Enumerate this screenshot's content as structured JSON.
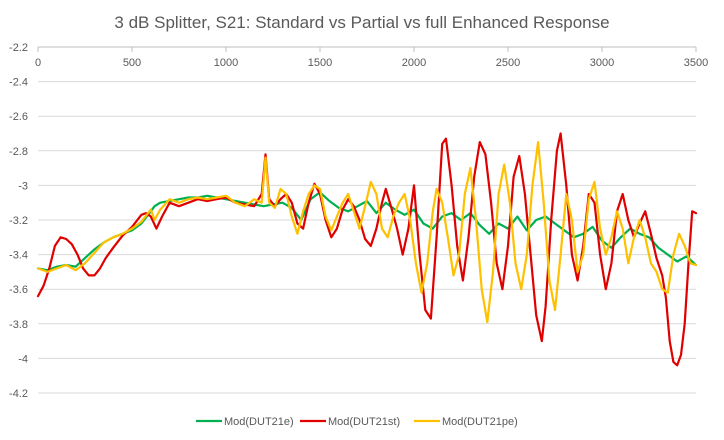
{
  "chart_data": {
    "type": "line",
    "title": "3 dB Splitter, S21: Standard vs Partial vs full Enhanced Response",
    "xlabel": "",
    "ylabel": "",
    "xlim": [
      0,
      3500
    ],
    "ylim": [
      -4.2,
      -2.2
    ],
    "x_ticks": [
      0,
      500,
      1000,
      1500,
      2000,
      2500,
      3000,
      3500
    ],
    "y_ticks": [
      -2.2,
      -2.4,
      -2.6,
      -2.8,
      -3,
      -3.2,
      -3.4,
      -3.6,
      -3.8,
      -4,
      -4.2
    ],
    "x_tick_labels": [
      "0",
      "500",
      "1000",
      "1500",
      "2000",
      "2500",
      "3000",
      "3500"
    ],
    "y_tick_labels": [
      "-2.2",
      "-2.4",
      "-2.6",
      "-2.8",
      "-3",
      "-3.2",
      "-3.4",
      "-3.6",
      "-3.8",
      "-4",
      "-4.2"
    ],
    "grid": "horizontal",
    "legend_position": "bottom",
    "series": [
      {
        "name": "Mod(DUT21e)",
        "color": "#00B050",
        "points": [
          [
            0,
            -3.48
          ],
          [
            50,
            -3.49
          ],
          [
            100,
            -3.47
          ],
          [
            150,
            -3.46
          ],
          [
            200,
            -3.47
          ],
          [
            250,
            -3.42
          ],
          [
            300,
            -3.37
          ],
          [
            350,
            -3.33
          ],
          [
            400,
            -3.3
          ],
          [
            450,
            -3.28
          ],
          [
            500,
            -3.26
          ],
          [
            550,
            -3.22
          ],
          [
            600,
            -3.15
          ],
          [
            620,
            -3.12
          ],
          [
            650,
            -3.1
          ],
          [
            700,
            -3.09
          ],
          [
            750,
            -3.08
          ],
          [
            800,
            -3.07
          ],
          [
            850,
            -3.07
          ],
          [
            900,
            -3.06
          ],
          [
            950,
            -3.07
          ],
          [
            1000,
            -3.08
          ],
          [
            1050,
            -3.09
          ],
          [
            1100,
            -3.1
          ],
          [
            1150,
            -3.11
          ],
          [
            1200,
            -3.12
          ],
          [
            1250,
            -3.11
          ],
          [
            1300,
            -3.1
          ],
          [
            1350,
            -3.13
          ],
          [
            1400,
            -3.2
          ],
          [
            1450,
            -3.08
          ],
          [
            1500,
            -3.04
          ],
          [
            1550,
            -3.09
          ],
          [
            1600,
            -3.13
          ],
          [
            1650,
            -3.15
          ],
          [
            1700,
            -3.12
          ],
          [
            1750,
            -3.09
          ],
          [
            1800,
            -3.16
          ],
          [
            1850,
            -3.1
          ],
          [
            1900,
            -3.14
          ],
          [
            1950,
            -3.17
          ],
          [
            2000,
            -3.14
          ],
          [
            2050,
            -3.22
          ],
          [
            2100,
            -3.25
          ],
          [
            2150,
            -3.18
          ],
          [
            2200,
            -3.16
          ],
          [
            2250,
            -3.2
          ],
          [
            2300,
            -3.16
          ],
          [
            2350,
            -3.23
          ],
          [
            2400,
            -3.28
          ],
          [
            2450,
            -3.22
          ],
          [
            2500,
            -3.25
          ],
          [
            2550,
            -3.18
          ],
          [
            2600,
            -3.26
          ],
          [
            2650,
            -3.2
          ],
          [
            2700,
            -3.18
          ],
          [
            2750,
            -3.22
          ],
          [
            2800,
            -3.26
          ],
          [
            2850,
            -3.3
          ],
          [
            2900,
            -3.28
          ],
          [
            2950,
            -3.24
          ],
          [
            3000,
            -3.32
          ],
          [
            3050,
            -3.36
          ],
          [
            3100,
            -3.3
          ],
          [
            3150,
            -3.25
          ],
          [
            3200,
            -3.28
          ],
          [
            3250,
            -3.3
          ],
          [
            3300,
            -3.36
          ],
          [
            3350,
            -3.4
          ],
          [
            3400,
            -3.44
          ],
          [
            3450,
            -3.41
          ],
          [
            3500,
            -3.46
          ]
        ]
      },
      {
        "name": "Mod(DUT21st)",
        "color": "#E00000",
        "points": [
          [
            0,
            -3.64
          ],
          [
            30,
            -3.58
          ],
          [
            60,
            -3.48
          ],
          [
            90,
            -3.35
          ],
          [
            120,
            -3.3
          ],
          [
            150,
            -3.31
          ],
          [
            180,
            -3.34
          ],
          [
            210,
            -3.4
          ],
          [
            240,
            -3.48
          ],
          [
            270,
            -3.52
          ],
          [
            300,
            -3.52
          ],
          [
            330,
            -3.48
          ],
          [
            360,
            -3.42
          ],
          [
            400,
            -3.36
          ],
          [
            450,
            -3.29
          ],
          [
            500,
            -3.24
          ],
          [
            550,
            -3.17
          ],
          [
            575,
            -3.16
          ],
          [
            600,
            -3.18
          ],
          [
            630,
            -3.25
          ],
          [
            660,
            -3.18
          ],
          [
            700,
            -3.1
          ],
          [
            750,
            -3.12
          ],
          [
            800,
            -3.1
          ],
          [
            850,
            -3.08
          ],
          [
            900,
            -3.09
          ],
          [
            950,
            -3.08
          ],
          [
            1000,
            -3.07
          ],
          [
            1050,
            -3.1
          ],
          [
            1100,
            -3.11
          ],
          [
            1150,
            -3.12
          ],
          [
            1190,
            -3.05
          ],
          [
            1210,
            -2.82
          ],
          [
            1230,
            -3.08
          ],
          [
            1260,
            -3.12
          ],
          [
            1290,
            -3.08
          ],
          [
            1320,
            -3.05
          ],
          [
            1350,
            -3.1
          ],
          [
            1380,
            -3.22
          ],
          [
            1410,
            -3.25
          ],
          [
            1440,
            -3.1
          ],
          [
            1470,
            -2.99
          ],
          [
            1500,
            -3.05
          ],
          [
            1530,
            -3.2
          ],
          [
            1560,
            -3.3
          ],
          [
            1590,
            -3.25
          ],
          [
            1620,
            -3.14
          ],
          [
            1650,
            -3.08
          ],
          [
            1680,
            -3.12
          ],
          [
            1710,
            -3.2
          ],
          [
            1740,
            -3.31
          ],
          [
            1770,
            -3.35
          ],
          [
            1800,
            -3.25
          ],
          [
            1830,
            -3.1
          ],
          [
            1850,
            -3.02
          ],
          [
            1880,
            -3.13
          ],
          [
            1910,
            -3.25
          ],
          [
            1940,
            -3.4
          ],
          [
            1970,
            -3.25
          ],
          [
            2000,
            -3.0
          ],
          [
            2030,
            -3.4
          ],
          [
            2060,
            -3.72
          ],
          [
            2090,
            -3.77
          ],
          [
            2120,
            -3.3
          ],
          [
            2150,
            -2.76
          ],
          [
            2170,
            -2.73
          ],
          [
            2200,
            -3.0
          ],
          [
            2230,
            -3.35
          ],
          [
            2260,
            -3.55
          ],
          [
            2290,
            -3.3
          ],
          [
            2320,
            -2.95
          ],
          [
            2350,
            -2.75
          ],
          [
            2380,
            -2.82
          ],
          [
            2410,
            -3.1
          ],
          [
            2440,
            -3.45
          ],
          [
            2470,
            -3.6
          ],
          [
            2500,
            -3.35
          ],
          [
            2530,
            -2.95
          ],
          [
            2560,
            -2.83
          ],
          [
            2590,
            -3.05
          ],
          [
            2620,
            -3.4
          ],
          [
            2650,
            -3.75
          ],
          [
            2680,
            -3.9
          ],
          [
            2700,
            -3.7
          ],
          [
            2730,
            -3.2
          ],
          [
            2760,
            -2.8
          ],
          [
            2780,
            -2.7
          ],
          [
            2810,
            -3.0
          ],
          [
            2840,
            -3.4
          ],
          [
            2870,
            -3.55
          ],
          [
            2900,
            -3.35
          ],
          [
            2930,
            -3.05
          ],
          [
            2960,
            -3.1
          ],
          [
            2990,
            -3.4
          ],
          [
            3020,
            -3.6
          ],
          [
            3050,
            -3.45
          ],
          [
            3080,
            -3.15
          ],
          [
            3110,
            -3.05
          ],
          [
            3140,
            -3.2
          ],
          [
            3170,
            -3.3
          ],
          [
            3200,
            -3.22
          ],
          [
            3230,
            -3.15
          ],
          [
            3260,
            -3.28
          ],
          [
            3290,
            -3.42
          ],
          [
            3320,
            -3.52
          ],
          [
            3340,
            -3.65
          ],
          [
            3360,
            -3.9
          ],
          [
            3380,
            -4.02
          ],
          [
            3400,
            -4.04
          ],
          [
            3420,
            -3.98
          ],
          [
            3440,
            -3.8
          ],
          [
            3460,
            -3.45
          ],
          [
            3480,
            -3.15
          ],
          [
            3500,
            -3.16
          ]
        ]
      },
      {
        "name": "Mod(DUT21pe)",
        "color": "#FFC000",
        "points": [
          [
            0,
            -3.48
          ],
          [
            50,
            -3.5
          ],
          [
            100,
            -3.48
          ],
          [
            150,
            -3.46
          ],
          [
            200,
            -3.49
          ],
          [
            250,
            -3.45
          ],
          [
            300,
            -3.39
          ],
          [
            350,
            -3.33
          ],
          [
            400,
            -3.3
          ],
          [
            450,
            -3.28
          ],
          [
            500,
            -3.25
          ],
          [
            550,
            -3.21
          ],
          [
            600,
            -3.14
          ],
          [
            620,
            -3.2
          ],
          [
            650,
            -3.14
          ],
          [
            700,
            -3.08
          ],
          [
            750,
            -3.1
          ],
          [
            800,
            -3.08
          ],
          [
            850,
            -3.07
          ],
          [
            900,
            -3.08
          ],
          [
            950,
            -3.07
          ],
          [
            1000,
            -3.06
          ],
          [
            1050,
            -3.1
          ],
          [
            1100,
            -3.12
          ],
          [
            1150,
            -3.08
          ],
          [
            1190,
            -3.1
          ],
          [
            1210,
            -2.84
          ],
          [
            1230,
            -3.1
          ],
          [
            1260,
            -3.13
          ],
          [
            1290,
            -3.02
          ],
          [
            1320,
            -3.05
          ],
          [
            1350,
            -3.18
          ],
          [
            1380,
            -3.28
          ],
          [
            1410,
            -3.15
          ],
          [
            1440,
            -3.05
          ],
          [
            1470,
            -3.0
          ],
          [
            1500,
            -3.02
          ],
          [
            1530,
            -3.18
          ],
          [
            1560,
            -3.26
          ],
          [
            1590,
            -3.18
          ],
          [
            1620,
            -3.1
          ],
          [
            1650,
            -3.05
          ],
          [
            1680,
            -3.15
          ],
          [
            1710,
            -3.25
          ],
          [
            1740,
            -3.12
          ],
          [
            1770,
            -2.98
          ],
          [
            1800,
            -3.05
          ],
          [
            1830,
            -3.25
          ],
          [
            1860,
            -3.3
          ],
          [
            1890,
            -3.18
          ],
          [
            1920,
            -3.1
          ],
          [
            1950,
            -3.05
          ],
          [
            1980,
            -3.2
          ],
          [
            2010,
            -3.45
          ],
          [
            2040,
            -3.62
          ],
          [
            2070,
            -3.45
          ],
          [
            2100,
            -3.15
          ],
          [
            2120,
            -3.02
          ],
          [
            2150,
            -3.1
          ],
          [
            2180,
            -3.3
          ],
          [
            2210,
            -3.52
          ],
          [
            2240,
            -3.4
          ],
          [
            2270,
            -3.05
          ],
          [
            2300,
            -2.9
          ],
          [
            2330,
            -3.2
          ],
          [
            2360,
            -3.6
          ],
          [
            2390,
            -3.79
          ],
          [
            2420,
            -3.5
          ],
          [
            2450,
            -3.05
          ],
          [
            2480,
            -2.88
          ],
          [
            2510,
            -3.1
          ],
          [
            2540,
            -3.45
          ],
          [
            2570,
            -3.6
          ],
          [
            2600,
            -3.4
          ],
          [
            2630,
            -3.0
          ],
          [
            2660,
            -2.75
          ],
          [
            2690,
            -3.1
          ],
          [
            2720,
            -3.55
          ],
          [
            2750,
            -3.72
          ],
          [
            2780,
            -3.4
          ],
          [
            2810,
            -3.05
          ],
          [
            2840,
            -3.2
          ],
          [
            2870,
            -3.5
          ],
          [
            2900,
            -3.4
          ],
          [
            2930,
            -3.08
          ],
          [
            2960,
            -2.98
          ],
          [
            2990,
            -3.25
          ],
          [
            3020,
            -3.4
          ],
          [
            3050,
            -3.3
          ],
          [
            3080,
            -3.15
          ],
          [
            3110,
            -3.25
          ],
          [
            3140,
            -3.45
          ],
          [
            3170,
            -3.3
          ],
          [
            3200,
            -3.2
          ],
          [
            3230,
            -3.3
          ],
          [
            3260,
            -3.45
          ],
          [
            3290,
            -3.5
          ],
          [
            3320,
            -3.6
          ],
          [
            3350,
            -3.62
          ],
          [
            3380,
            -3.4
          ],
          [
            3410,
            -3.28
          ],
          [
            3440,
            -3.35
          ],
          [
            3470,
            -3.45
          ],
          [
            3500,
            -3.46
          ]
        ]
      }
    ]
  }
}
